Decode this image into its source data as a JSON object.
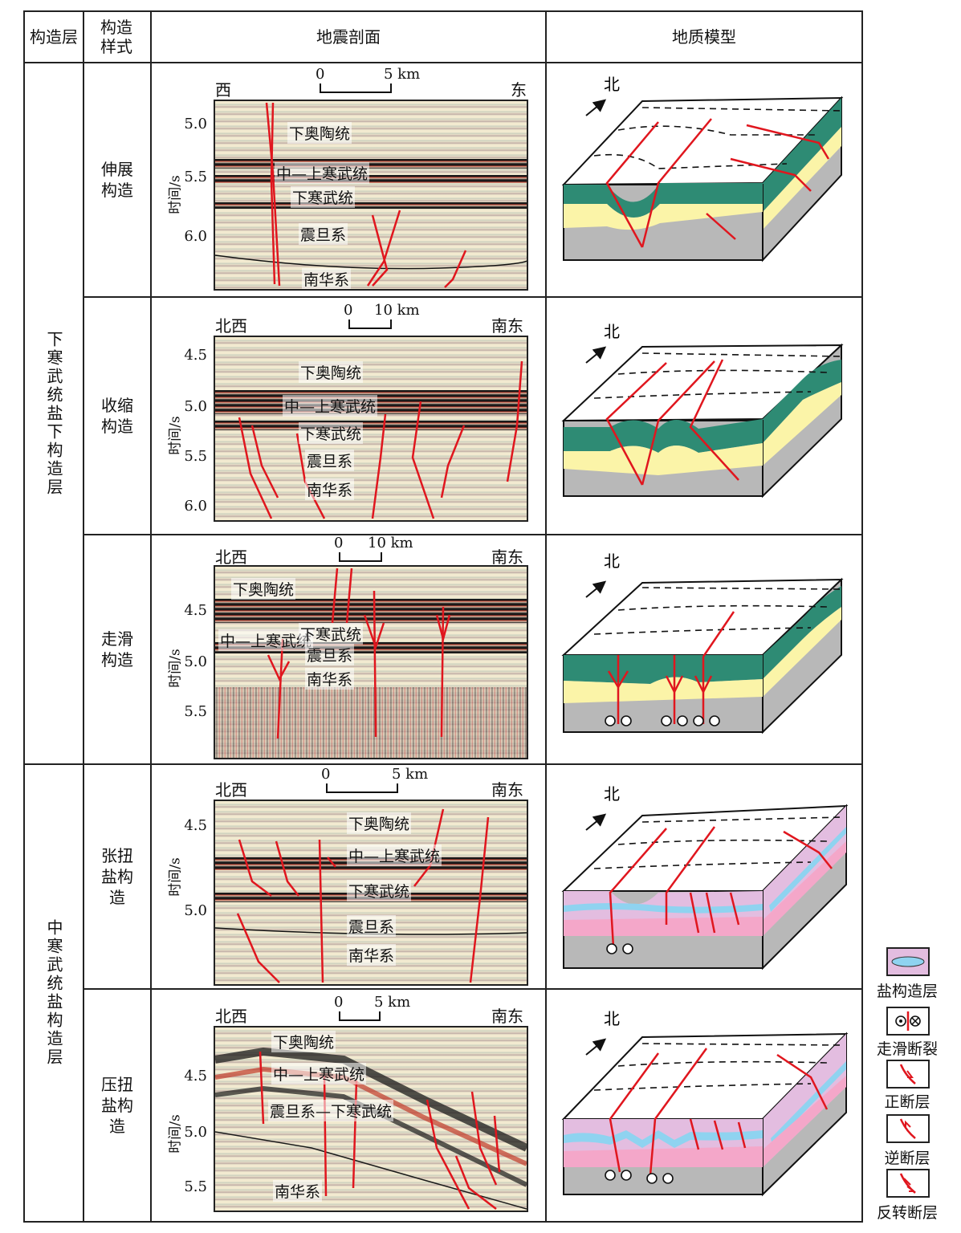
{
  "header": {
    "col1": "构造层",
    "col2": "构造样式",
    "col3": "地震剖面",
    "col4": "地质模型"
  },
  "groups": [
    {
      "label": "下寒武统盐下构造层"
    },
    {
      "label": "中寒武统盐构造层"
    }
  ],
  "rows": [
    {
      "style": "伸展构造",
      "left_dir": "西",
      "right_dir": "东",
      "scale_zero": "0",
      "scale_end": "5 km",
      "ticks": [
        "5.0",
        "5.5",
        "6.0"
      ],
      "horizons": [
        "下奥陶统",
        "中—上寒武统",
        "下寒武统",
        "震旦系",
        "南华系"
      ]
    },
    {
      "style": "收缩构造",
      "left_dir": "北西",
      "right_dir": "南东",
      "scale_zero": "0",
      "scale_end": "10 km",
      "ticks": [
        "4.5",
        "5.0",
        "5.5",
        "6.0"
      ],
      "horizons": [
        "下奥陶统",
        "中—上寒武统",
        "下寒武统",
        "震旦系",
        "南华系"
      ]
    },
    {
      "style": "走滑构造",
      "left_dir": "北西",
      "right_dir": "南东",
      "scale_zero": "0",
      "scale_end": "10 km",
      "ticks": [
        "4.5",
        "5.0",
        "5.5"
      ],
      "horizons": [
        "下奥陶统",
        "中—上寒武统",
        "下寒武统",
        "震旦系",
        "南华系"
      ]
    },
    {
      "style": "张扭盐构造",
      "left_dir": "北西",
      "right_dir": "南东",
      "scale_zero": "0",
      "scale_end": "5 km",
      "ticks": [
        "4.5",
        "5.0"
      ],
      "horizons": [
        "下奥陶统",
        "中—上寒武统",
        "下寒武统",
        "震旦系",
        "南华系"
      ]
    },
    {
      "style": "压扭盐构造",
      "left_dir": "北西",
      "right_dir": "南东",
      "scale_zero": "0",
      "scale_end": "5 km",
      "ticks": [
        "4.5",
        "5.0",
        "5.5"
      ],
      "horizons": [
        "下奥陶统",
        "中—上寒武统",
        "震旦系—下寒武统",
        "南华系"
      ]
    }
  ],
  "ylabel": "时间/s",
  "north": "北",
  "legend": [
    {
      "label": "盐构造层",
      "icon": "salt-layer-icon"
    },
    {
      "label": "走滑断裂",
      "icon": "strike-slip-icon"
    },
    {
      "label": "正断层",
      "icon": "normal-fault-icon"
    },
    {
      "label": "逆断层",
      "icon": "reverse-fault-icon"
    },
    {
      "label": "反转断层",
      "icon": "inversion-fault-icon"
    }
  ],
  "colors": {
    "fault": "#e0161e",
    "green": "#2e8b74",
    "yellow": "#fbf4a8",
    "gray": "#b8b8b8",
    "pink": "#f4a7c9",
    "lilac": "#e3bde0",
    "salt": "#8fd3f0"
  }
}
